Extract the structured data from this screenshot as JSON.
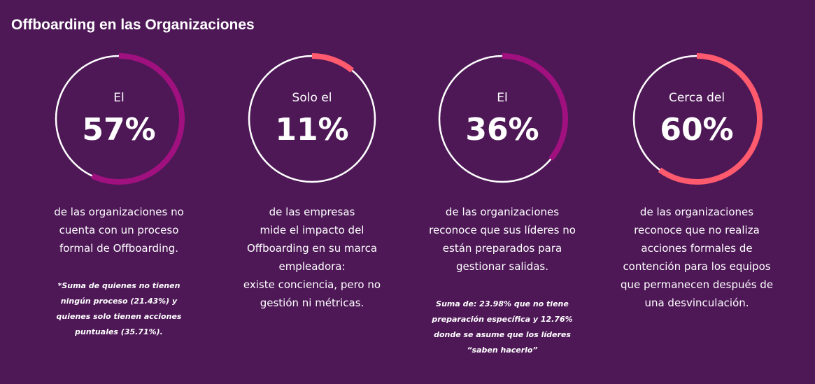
{
  "header": {
    "title": "Offboarding en las Organizaciones"
  },
  "chart_data": [
    {
      "type": "donut",
      "prefix": "El",
      "value": 57,
      "value_label": "57%",
      "color": "#a0107f",
      "description": [
        "de las organizaciones no",
        "cuenta con un proceso",
        "formal de Offboarding."
      ],
      "note": [
        "*Suma de quienes no tienen",
        "ningún proceso (21.43%) y",
        "quienes solo tienen acciones",
        "puntuales (35.71%)."
      ]
    },
    {
      "type": "donut",
      "prefix": "Solo el",
      "value": 11,
      "value_label": "11%",
      "color": "#ff5a6e",
      "description": [
        "de las empresas",
        "mide el impacto del",
        "Offboarding en su marca",
        "empleadora:",
        "existe conciencia, pero no",
        "gestión ni métricas."
      ],
      "note": []
    },
    {
      "type": "donut",
      "prefix": "El",
      "value": 36,
      "value_label": "36%",
      "color": "#a0107f",
      "description": [
        "de las organizaciones",
        "reconoce que sus líderes no",
        "están preparados para",
        "gestionar salidas."
      ],
      "note": [
        "Suma de: 23.98% que no tiene",
        "preparación específica y 12.76%",
        "donde se asume que los líderes",
        "“saben hacerlo”"
      ]
    },
    {
      "type": "donut",
      "prefix": "Cerca del",
      "value": 60,
      "value_label": "60%",
      "color": "#ff5a6e",
      "description": [
        "de las organizaciones",
        "reconoce que no realiza",
        "acciones formales de",
        "contención para los equipos",
        "que permanecen después de",
        "una desvinculación."
      ],
      "note": []
    }
  ]
}
